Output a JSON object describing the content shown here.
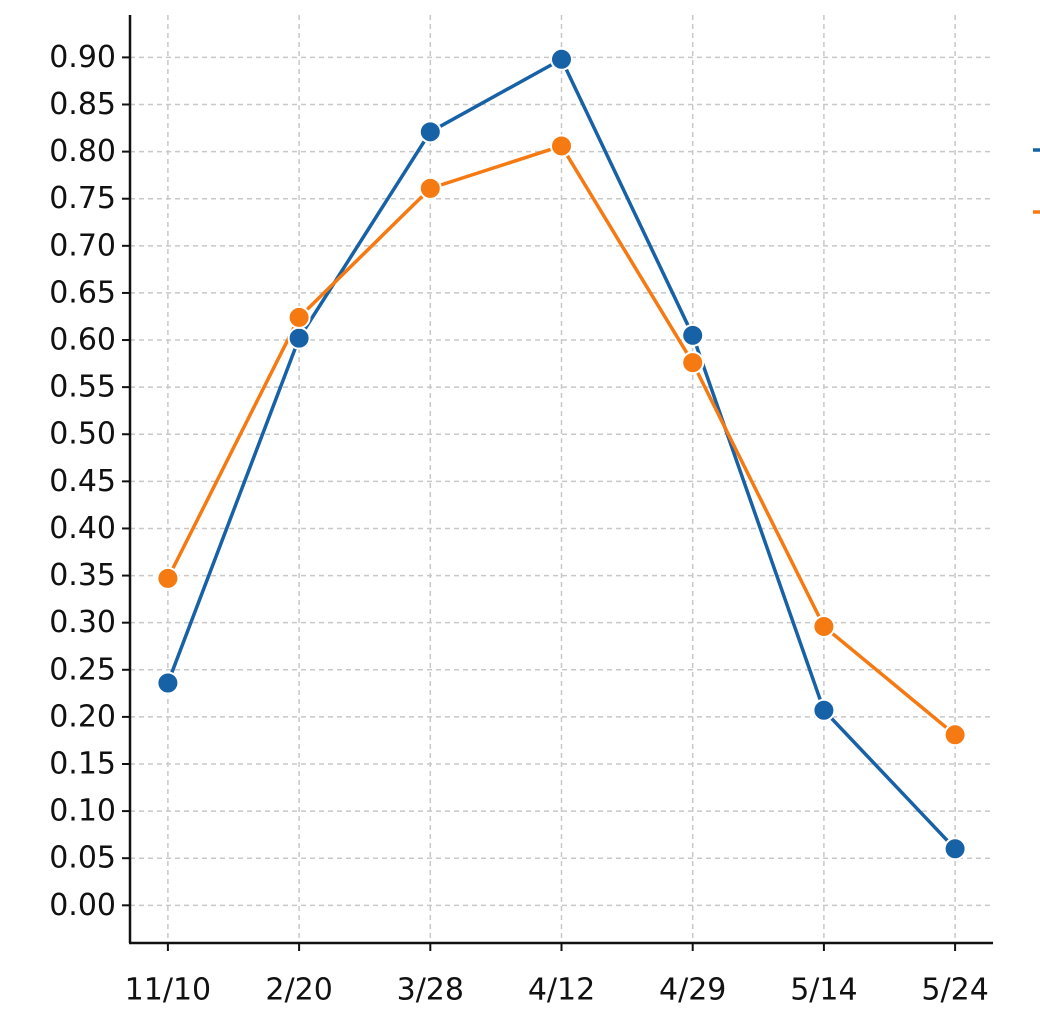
{
  "chart_data": {
    "type": "line",
    "categories": [
      "11/10",
      "2/20",
      "3/28",
      "4/12",
      "4/29",
      "5/14",
      "5/24"
    ],
    "series": [
      {
        "color": "#1761a6",
        "values": [
          0.236,
          0.602,
          0.821,
          0.898,
          0.605,
          0.207,
          0.06
        ]
      },
      {
        "color": "#f57a12",
        "values": [
          0.347,
          0.624,
          0.761,
          0.806,
          0.576,
          0.296,
          0.181
        ]
      }
    ],
    "ylim": [
      -0.04,
      0.945
    ],
    "yticks": [
      {
        "value": 0,
        "label": "0.00"
      },
      {
        "value": 0.05,
        "label": "0.05"
      },
      {
        "value": 0.1,
        "label": "0.10"
      },
      {
        "value": 0.15,
        "label": "0.15"
      },
      {
        "value": 0.2,
        "label": "0.20"
      },
      {
        "value": 0.25,
        "label": "0.25"
      },
      {
        "value": 0.3,
        "label": "0.30"
      },
      {
        "value": 0.35,
        "label": "0.35"
      },
      {
        "value": 0.4,
        "label": "0.40"
      },
      {
        "value": 0.45,
        "label": "0.45"
      },
      {
        "value": 0.5,
        "label": "0.50"
      },
      {
        "value": 0.55,
        "label": "0.55"
      },
      {
        "value": 0.6,
        "label": "0.60"
      },
      {
        "value": 0.65,
        "label": "0.65"
      },
      {
        "value": 0.7,
        "label": "0.70"
      },
      {
        "value": 0.75,
        "label": "0.75"
      },
      {
        "value": 0.8,
        "label": "0.80"
      },
      {
        "value": 0.85,
        "label": "0.85"
      },
      {
        "value": 0.9,
        "label": "0.90"
      }
    ],
    "grid": true
  }
}
